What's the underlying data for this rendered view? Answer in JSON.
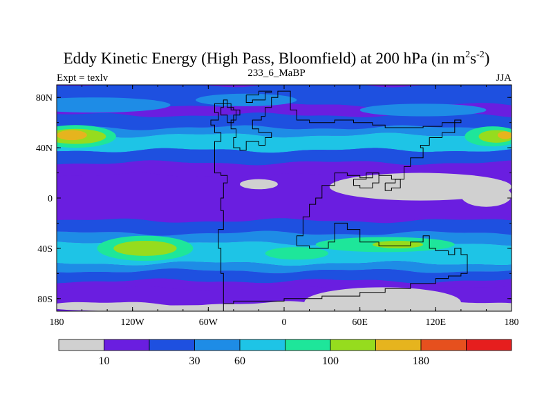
{
  "chart_data": {
    "type": "heatmap",
    "title_main": "Eddy Kinetic Energy (High Pass, Bloomfield) at 200 hPa (in m",
    "title_sup1": "2",
    "title_mid": "s",
    "title_sup2": "-2",
    "title_close": ")",
    "subtitle_left": "Expt = texlv",
    "subtitle_center": "233_6_MaBP",
    "subtitle_right": "JJA",
    "x_ticks": [
      {
        "lon": -180,
        "label": "180"
      },
      {
        "lon": -120,
        "label": "120W"
      },
      {
        "lon": -60,
        "label": "60W"
      },
      {
        "lon": 0,
        "label": "0"
      },
      {
        "lon": 60,
        "label": "60E"
      },
      {
        "lon": 120,
        "label": "120E"
      },
      {
        "lon": 180,
        "label": "180"
      }
    ],
    "y_ticks": [
      {
        "lat": 80,
        "label": "80N"
      },
      {
        "lat": 40,
        "label": "40N"
      },
      {
        "lat": 0,
        "label": "0"
      },
      {
        "lat": -40,
        "label": "40S"
      },
      {
        "lat": -80,
        "label": "80S"
      }
    ],
    "xlim": [
      -180,
      180
    ],
    "ylim": [
      -90,
      90
    ],
    "colorbar": {
      "colors": [
        "#d0d0d0",
        "#6a1ee0",
        "#1e50e0",
        "#1e8ce6",
        "#1ec4e6",
        "#1ee69a",
        "#96dc1e",
        "#e6b41e",
        "#e6501e",
        "#e61e1e"
      ],
      "label_positions": [
        1,
        3,
        4,
        6,
        8
      ],
      "labels": [
        "10",
        "30",
        "60",
        "100",
        "180"
      ]
    },
    "latitude_bands": [
      {
        "lat": [
          74,
          90
        ],
        "level": 2
      },
      {
        "lat": [
          66,
          74
        ],
        "level": 1
      },
      {
        "lat": [
          56,
          66
        ],
        "level": 2
      },
      {
        "lat": [
          50,
          56
        ],
        "level": 3
      },
      {
        "lat": [
          38,
          50
        ],
        "level": 4
      },
      {
        "lat": [
          28,
          38
        ],
        "level": 2
      },
      {
        "lat": [
          18,
          28
        ],
        "level": 1
      },
      {
        "lat": [
          -18,
          18
        ],
        "level": 1
      },
      {
        "lat": [
          -28,
          -18
        ],
        "level": 2
      },
      {
        "lat": [
          -36,
          -28
        ],
        "level": 3
      },
      {
        "lat": [
          -52,
          -36
        ],
        "level": 4
      },
      {
        "lat": [
          -58,
          -52
        ],
        "level": 3
      },
      {
        "lat": [
          -66,
          -58
        ],
        "level": 2
      },
      {
        "lat": [
          -72,
          -66
        ],
        "level": 1
      },
      {
        "lat": [
          -84,
          -72
        ],
        "level": 1
      },
      {
        "lat": [
          -90,
          -84
        ],
        "level": 0
      }
    ],
    "hotspots": [
      {
        "lon": -165,
        "lat": 49,
        "dlon": 32,
        "dlat": 9,
        "level": 5
      },
      {
        "lon": -165,
        "lat": 49,
        "dlon": 24,
        "dlat": 6,
        "level": 6
      },
      {
        "lon": -168,
        "lat": 50,
        "dlon": 12,
        "dlat": 4,
        "level": 7
      },
      {
        "lon": 165,
        "lat": 49,
        "dlon": 22,
        "dlat": 8,
        "level": 5
      },
      {
        "lon": 168,
        "lat": 49,
        "dlon": 14,
        "dlat": 5,
        "level": 6
      },
      {
        "lon": 175,
        "lat": 50,
        "dlon": 6,
        "dlat": 3,
        "level": 7
      },
      {
        "lon": -110,
        "lat": -40,
        "dlon": 38,
        "dlat": 10,
        "level": 5
      },
      {
        "lon": -110,
        "lat": -40,
        "dlon": 25,
        "dlat": 6,
        "level": 6
      },
      {
        "lon": 80,
        "lat": -37,
        "dlon": 55,
        "dlat": 6,
        "level": 5
      },
      {
        "lon": 90,
        "lat": -37,
        "dlon": 20,
        "dlat": 3,
        "level": 6
      },
      {
        "lon": 10,
        "lat": -44,
        "dlon": 25,
        "dlat": 5,
        "level": 5
      },
      {
        "lon": -150,
        "lat": 74,
        "dlon": 60,
        "dlat": 6,
        "level": 3
      },
      {
        "lon": 110,
        "lat": 70,
        "dlon": 50,
        "dlat": 5,
        "level": 3
      },
      {
        "lon": -30,
        "lat": 78,
        "dlon": 40,
        "dlat": 5,
        "level": 3
      }
    ],
    "below_threshold_regions": [
      {
        "lon": -20,
        "lat": 11,
        "dlon": 15,
        "dlat": 4
      },
      {
        "lon": 108,
        "lat": 9,
        "dlon": 72,
        "dlat": 11
      },
      {
        "lon": 160,
        "lat": 2,
        "dlon": 20,
        "dlat": 9
      },
      {
        "lon": 78,
        "lat": -83,
        "dlon": 62,
        "dlat": 12
      },
      {
        "lon": 0,
        "lat": -88,
        "dlon": 180,
        "dlat": 3
      }
    ],
    "continent_outlines": [
      [
        [
          -48,
          -90
        ],
        [
          -48,
          -60
        ],
        [
          -50,
          -40
        ],
        [
          -52,
          -25
        ],
        [
          -48,
          -10
        ],
        [
          -50,
          0
        ],
        [
          -48,
          12
        ],
        [
          -45,
          18
        ],
        [
          -50,
          20
        ],
        [
          -55,
          28
        ],
        [
          -55,
          45
        ],
        [
          -50,
          52
        ],
        [
          -55,
          58
        ],
        [
          -58,
          62
        ],
        [
          -52,
          68
        ],
        [
          -55,
          75
        ],
        [
          -48,
          78
        ],
        [
          -45,
          72
        ],
        [
          -40,
          70
        ],
        [
          -38,
          62
        ],
        [
          -42,
          55
        ],
        [
          -38,
          48
        ],
        [
          -40,
          40
        ],
        [
          -35,
          38
        ],
        [
          -30,
          45
        ],
        [
          -20,
          42
        ],
        [
          -15,
          48
        ],
        [
          -10,
          52
        ],
        [
          -20,
          55
        ],
        [
          -25,
          62
        ],
        [
          -18,
          65
        ],
        [
          -15,
          72
        ],
        [
          -10,
          80
        ],
        [
          -5,
          85
        ],
        [
          0,
          85
        ],
        [
          5,
          70
        ],
        [
          10,
          62
        ],
        [
          20,
          60
        ],
        [
          30,
          60
        ],
        [
          40,
          62
        ],
        [
          55,
          60
        ],
        [
          70,
          58
        ],
        [
          80,
          56
        ],
        [
          95,
          56
        ],
        [
          110,
          57
        ],
        [
          125,
          60
        ],
        [
          135,
          62
        ],
        [
          140,
          60
        ],
        [
          135,
          52
        ],
        [
          125,
          48
        ],
        [
          115,
          42
        ],
        [
          108,
          40
        ],
        [
          110,
          32
        ],
        [
          100,
          25
        ],
        [
          95,
          15
        ],
        [
          85,
          18
        ],
        [
          75,
          20
        ],
        [
          70,
          16
        ],
        [
          60,
          18
        ],
        [
          50,
          20
        ],
        [
          40,
          10
        ],
        [
          30,
          0
        ],
        [
          25,
          -5
        ],
        [
          20,
          -15
        ],
        [
          15,
          -30
        ],
        [
          10,
          -38
        ],
        [
          20,
          -40
        ],
        [
          35,
          -35
        ],
        [
          40,
          -20
        ],
        [
          50,
          -25
        ],
        [
          60,
          -35
        ],
        [
          70,
          -35
        ],
        [
          75,
          -38
        ],
        [
          90,
          -38
        ],
        [
          100,
          -35
        ],
        [
          110,
          -30
        ],
        [
          115,
          -40
        ],
        [
          120,
          -42
        ],
        [
          130,
          -45
        ],
        [
          135,
          -40
        ],
        [
          140,
          -45
        ],
        [
          145,
          -55
        ],
        [
          145,
          -60
        ],
        [
          140,
          -62
        ],
        [
          130,
          -64
        ],
        [
          120,
          -68
        ],
        [
          100,
          -72
        ],
        [
          80,
          -75
        ],
        [
          60,
          -78
        ],
        [
          30,
          -80
        ],
        [
          0,
          -82
        ],
        [
          -20,
          -82
        ],
        [
          -40,
          -84
        ],
        [
          -48,
          -90
        ]
      ],
      [
        [
          -45,
          60
        ],
        [
          -40,
          66
        ],
        [
          -35,
          70
        ],
        [
          -42,
          75
        ],
        [
          -48,
          72
        ],
        [
          -50,
          66
        ],
        [
          -45,
          60
        ]
      ],
      [
        [
          -30,
          82
        ],
        [
          -20,
          85
        ],
        [
          -10,
          84
        ],
        [
          -15,
          78
        ],
        [
          -25,
          76
        ],
        [
          -30,
          82
        ]
      ],
      [
        [
          55,
          15
        ],
        [
          65,
          20
        ],
        [
          75,
          12
        ],
        [
          70,
          8
        ],
        [
          60,
          10
        ],
        [
          55,
          15
        ]
      ],
      [
        [
          80,
          12
        ],
        [
          88,
          15
        ],
        [
          92,
          8
        ],
        [
          85,
          6
        ],
        [
          80,
          12
        ]
      ]
    ]
  }
}
